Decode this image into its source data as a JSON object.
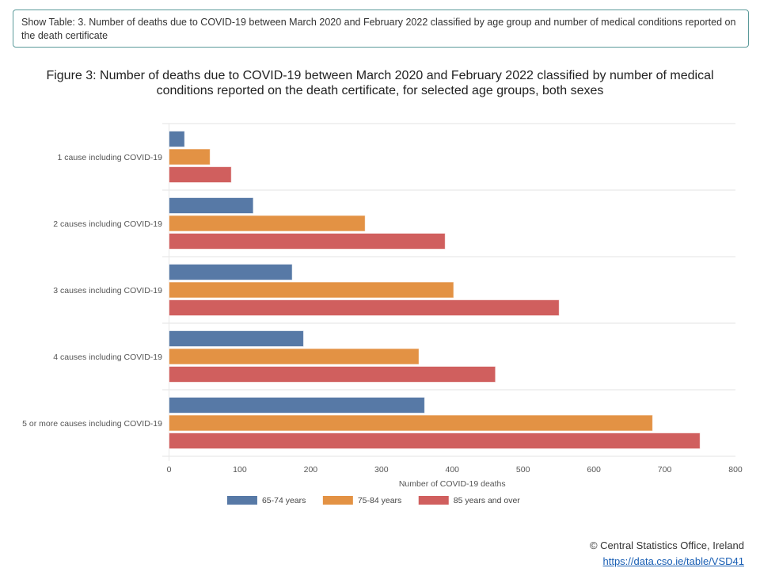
{
  "table_toggle": {
    "label": "Show Table: 3. Number of deaths due to COVID-19 between March 2020 and February 2022 classified by age group and number of medical conditions reported on the death certificate"
  },
  "figure": {
    "title": "Figure 3: Number of deaths due to COVID-19 between March 2020 and February 2022 classified by number of medical conditions reported on the death certificate, for selected age groups, both sexes"
  },
  "chart_data": {
    "type": "bar",
    "orientation": "horizontal",
    "title": "Figure 3: Number of deaths due to COVID-19 between March 2020 and February 2022 classified by number of medical conditions reported on the death certificate, for selected age groups, both sexes",
    "categories": [
      "1 cause including COVID-19",
      "2 causes including COVID-19",
      "3 causes including COVID-19",
      "4 causes including COVID-19",
      "5 or more causes including COVID-19"
    ],
    "series": [
      {
        "name": "65-74 years",
        "color": "#5779a6",
        "values": [
          22,
          119,
          174,
          190,
          361
        ]
      },
      {
        "name": "75-84 years",
        "color": "#e39244",
        "values": [
          58,
          277,
          402,
          353,
          683
        ]
      },
      {
        "name": "85 years and over",
        "color": "#d05f5e",
        "values": [
          88,
          390,
          551,
          461,
          750
        ]
      }
    ],
    "xlabel": "Number of COVID-19 deaths",
    "ylabel": "",
    "xlim": [
      0,
      800
    ],
    "xticks": [
      0,
      100,
      200,
      300,
      400,
      500,
      600,
      700,
      800
    ],
    "grid": "horizontal category separators",
    "legend": "bottom-center"
  },
  "credit": {
    "copyright": "© Central Statistics Office, Ireland",
    "link_text": "https://data.cso.ie/table/VSD41"
  }
}
